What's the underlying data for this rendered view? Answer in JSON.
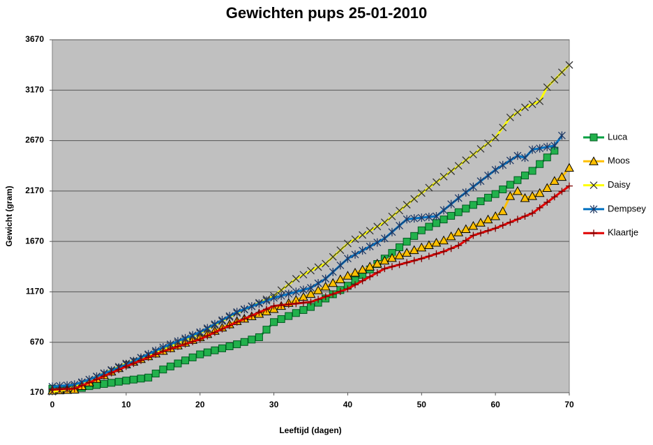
{
  "chart_data": {
    "type": "line",
    "title": "Gewichten pups 25-01-2010",
    "x_label": "Leeftijd (dagen)",
    "y_label": "Gewicht (gram)",
    "xlim": [
      0,
      70
    ],
    "xticks": [
      0,
      10,
      20,
      30,
      40,
      50,
      60,
      70
    ],
    "ylim": [
      170,
      3670
    ],
    "yticks": [
      170,
      670,
      1170,
      1670,
      2170,
      2670,
      3170,
      3670
    ],
    "grid": true,
    "legend": "right",
    "x": [
      0,
      1,
      2,
      3,
      4,
      5,
      6,
      7,
      8,
      9,
      10,
      11,
      12,
      13,
      14,
      15,
      16,
      17,
      18,
      19,
      20,
      21,
      22,
      23,
      24,
      25,
      26,
      27,
      28,
      29,
      30,
      31,
      32,
      33,
      34,
      35,
      36,
      37,
      38,
      39,
      40,
      41,
      42,
      43,
      44,
      45,
      46,
      47,
      48,
      49,
      50,
      51,
      52,
      53,
      54,
      55,
      56,
      57,
      58,
      59,
      60,
      61,
      62,
      63,
      64,
      65,
      66,
      67,
      68,
      69,
      70
    ],
    "series": [
      {
        "name": "Luca",
        "color": "#00a040",
        "marker": "square",
        "marker_color": "#22b14c",
        "values": [
          210,
          205,
          200,
          200,
          218,
          235,
          246,
          257,
          268,
          279,
          290,
          300,
          310,
          320,
          360,
          400,
          430,
          460,
          490,
          520,
          550,
          570,
          590,
          610,
          630,
          650,
          673,
          697,
          720,
          795,
          870,
          900,
          930,
          960,
          990,
          1020,
          1062,
          1104,
          1146,
          1188,
          1230,
          1284,
          1338,
          1392,
          1446,
          1500,
          1556,
          1612,
          1668,
          1724,
          1780,
          1816,
          1852,
          1888,
          1924,
          1960,
          1996,
          2032,
          2068,
          2104,
          2140,
          2186,
          2232,
          2278,
          2324,
          2370,
          2437,
          2503,
          2570,
          null,
          null
        ]
      },
      {
        "name": "Moos",
        "color": "#ffc000",
        "marker": "triangle",
        "marker_color": "#ffc000",
        "values": [
          190,
          193,
          197,
          200,
          236,
          271,
          307,
          343,
          379,
          414,
          450,
          477,
          504,
          531,
          558,
          585,
          612,
          639,
          666,
          693,
          720,
          752,
          784,
          816,
          848,
          880,
          904,
          928,
          952,
          976,
          1000,
          1030,
          1060,
          1090,
          1120,
          1150,
          1186,
          1222,
          1258,
          1294,
          1330,
          1360,
          1390,
          1420,
          1450,
          1480,
          1506,
          1532,
          1558,
          1584,
          1610,
          1633,
          1657,
          1680,
          1720,
          1760,
          1792,
          1824,
          1856,
          1888,
          1920,
          1970,
          2120,
          2170,
          2100,
          2120,
          2150,
          2200,
          2270,
          2310,
          2400
        ]
      },
      {
        "name": "Daisy",
        "color": "#ffff00",
        "marker": "x",
        "marker_color": "#333333",
        "values": [
          180,
          190,
          200,
          233,
          267,
          300,
          332,
          364,
          396,
          428,
          460,
          488,
          516,
          544,
          572,
          600,
          632,
          664,
          696,
          728,
          760,
          800,
          840,
          880,
          920,
          960,
          994,
          1028,
          1062,
          1096,
          1130,
          1187,
          1243,
          1300,
          1340,
          1380,
          1415,
          1450,
          1517,
          1583,
          1650,
          1692,
          1734,
          1776,
          1818,
          1860,
          1918,
          1976,
          2034,
          2092,
          2150,
          2204,
          2258,
          2312,
          2366,
          2420,
          2476,
          2532,
          2588,
          2644,
          2700,
          2800,
          2900,
          2950,
          3000,
          3030,
          3060,
          3200,
          3273,
          3347,
          3420
        ]
      },
      {
        "name": "Dempsey",
        "color": "#0070c0",
        "marker": "asterisk",
        "marker_color": "#1f3864",
        "values": [
          230,
          237,
          243,
          250,
          275,
          300,
          330,
          360,
          390,
          420,
          450,
          484,
          518,
          552,
          586,
          620,
          650,
          680,
          710,
          740,
          770,
          810,
          850,
          890,
          930,
          970,
          998,
          1026,
          1054,
          1082,
          1110,
          1130,
          1150,
          1170,
          1190,
          1210,
          1255,
          1300,
          1367,
          1433,
          1500,
          1540,
          1580,
          1620,
          1660,
          1700,
          1763,
          1827,
          1890,
          1898,
          1905,
          1913,
          1920,
          1980,
          2040,
          2100,
          2156,
          2212,
          2268,
          2324,
          2380,
          2427,
          2473,
          2520,
          2500,
          2580,
          2593,
          2607,
          2620,
          2720,
          null
        ]
      },
      {
        "name": "Klaartje",
        "color": "#e00000",
        "marker": "plus",
        "marker_color": "#7a0000",
        "values": [
          200,
          203,
          207,
          210,
          240,
          270,
          302,
          334,
          366,
          398,
          430,
          460,
          490,
          520,
          550,
          580,
          604,
          628,
          652,
          676,
          700,
          734,
          768,
          802,
          836,
          870,
          902,
          934,
          966,
          998,
          1030,
          1038,
          1046,
          1054,
          1062,
          1070,
          1096,
          1122,
          1148,
          1174,
          1200,
          1240,
          1280,
          1320,
          1360,
          1400,
          1420,
          1440,
          1460,
          1480,
          1500,
          1523,
          1547,
          1570,
          1600,
          1630,
          1680,
          1730,
          1753,
          1777,
          1800,
          1830,
          1860,
          1890,
          1920,
          1950,
          2004,
          2058,
          2112,
          2166,
          2220
        ]
      }
    ]
  }
}
